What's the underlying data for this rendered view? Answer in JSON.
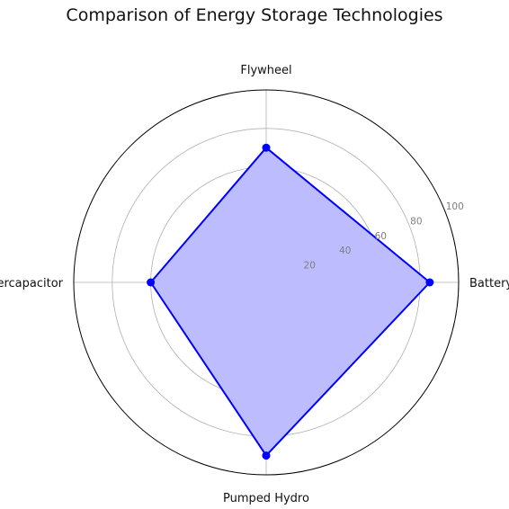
{
  "chart_data": {
    "type": "radar",
    "title": "Comparison of Energy Storage Technologies",
    "categories": [
      "Battery",
      "Flywheel",
      "Supercapacitor",
      "Pumped Hydro"
    ],
    "series": [
      {
        "values": [
          85,
          70,
          60,
          90
        ],
        "color": "#0000ff",
        "fill_color": "#bcbcff"
      }
    ],
    "r_ticks": [
      20,
      40,
      60,
      80,
      100
    ],
    "rlim": [
      0,
      100
    ],
    "grid": true
  }
}
